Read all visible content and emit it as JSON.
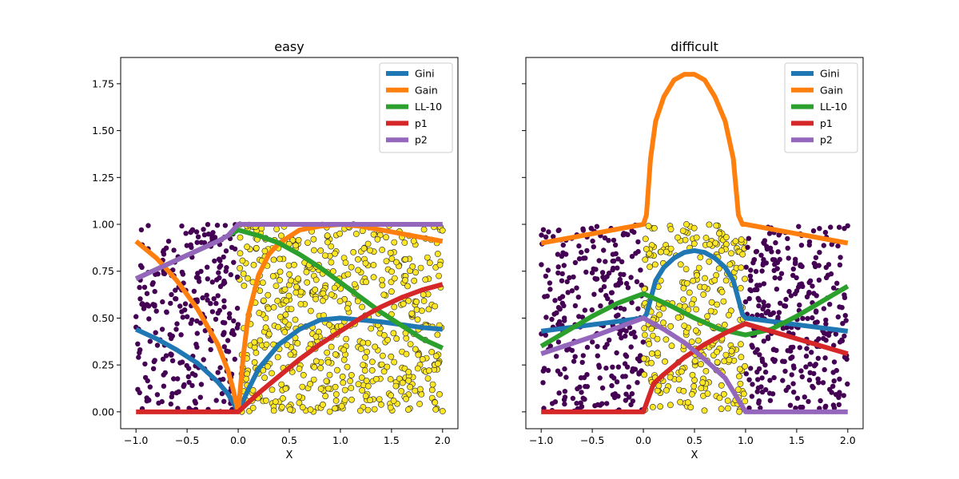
{
  "chart_data": [
    {
      "type": "line",
      "title": "easy",
      "xlabel": "X",
      "ylabel": "",
      "xlim": [
        -1.15,
        2.15
      ],
      "ylim": [
        -0.09,
        1.89
      ],
      "xticks": [
        -1.0,
        -0.5,
        0.0,
        0.5,
        1.0,
        1.5,
        2.0
      ],
      "yticks": [
        0.0,
        0.25,
        0.5,
        0.75,
        1.0,
        1.25,
        1.5,
        1.75
      ],
      "xtick_labels": [
        "−1.0",
        "−0.5",
        "0.0",
        "0.5",
        "1.0",
        "1.5",
        "2.0"
      ],
      "ytick_labels": [
        "0.00",
        "0.25",
        "0.50",
        "0.75",
        "1.00",
        "1.25",
        "1.50",
        "1.75"
      ],
      "legend_position": "top-right",
      "scatter": {
        "description": "class samples scattered over x in [-1, 2], y in [0, 1]",
        "classes": [
          {
            "name": "class 0",
            "color": "#440154",
            "region": "x < 0"
          },
          {
            "name": "class 1",
            "color": "#fde725",
            "region": "x >= 0"
          }
        ],
        "count": 900
      },
      "series": [
        {
          "name": "Gini",
          "color": "#1f77b4",
          "x": [
            -1,
            -0.8,
            -0.6,
            -0.4,
            -0.2,
            -0.1,
            -0.05,
            0,
            0.05,
            0.1,
            0.2,
            0.4,
            0.6,
            0.8,
            1.0,
            1.2,
            1.4,
            1.6,
            1.8,
            2.0
          ],
          "y": [
            0.44,
            0.39,
            0.33,
            0.26,
            0.16,
            0.095,
            0.05,
            0.0,
            0.06,
            0.12,
            0.23,
            0.36,
            0.44,
            0.49,
            0.5,
            0.49,
            0.48,
            0.465,
            0.45,
            0.44
          ]
        },
        {
          "name": "Gain",
          "color": "#ff7f0e",
          "x": [
            -1,
            -0.8,
            -0.6,
            -0.4,
            -0.2,
            -0.1,
            -0.05,
            0,
            0.05,
            0.1,
            0.2,
            0.3,
            0.4,
            0.6,
            0.8,
            1.0,
            1.2,
            1.4,
            1.6,
            1.8,
            2.0
          ],
          "y": [
            0.91,
            0.82,
            0.7,
            0.55,
            0.36,
            0.22,
            0.12,
            0.0,
            0.3,
            0.52,
            0.73,
            0.84,
            0.9,
            0.97,
            0.99,
            1.0,
            0.99,
            0.97,
            0.95,
            0.93,
            0.91
          ]
        },
        {
          "name": "LL-10",
          "color": "#2ca02c",
          "x": [
            -1,
            -0.8,
            -0.6,
            -0.4,
            -0.2,
            0,
            0.2,
            0.4,
            0.6,
            0.8,
            1.0,
            1.2,
            1.4,
            1.6,
            1.8,
            2.0
          ],
          "y": [
            0.71,
            0.76,
            0.81,
            0.86,
            0.91,
            0.97,
            0.94,
            0.9,
            0.84,
            0.77,
            0.69,
            0.61,
            0.53,
            0.46,
            0.39,
            0.34
          ]
        },
        {
          "name": "p1",
          "color": "#d62728",
          "x": [
            -1,
            -0.5,
            0,
            0.1,
            0.2,
            0.4,
            0.6,
            0.8,
            1.0,
            1.2,
            1.4,
            1.6,
            1.8,
            2.0
          ],
          "y": [
            0.0,
            0.0,
            0.0,
            0.05,
            0.1,
            0.19,
            0.28,
            0.36,
            0.43,
            0.5,
            0.56,
            0.61,
            0.65,
            0.68
          ]
        },
        {
          "name": "p2",
          "color": "#9467bd",
          "x": [
            -1,
            -0.8,
            -0.6,
            -0.4,
            -0.2,
            -0.1,
            0,
            0.5,
            1.0,
            1.5,
            2.0
          ],
          "y": [
            0.71,
            0.76,
            0.81,
            0.86,
            0.91,
            0.94,
            1.0,
            1.0,
            1.0,
            1.0,
            1.0
          ]
        }
      ]
    },
    {
      "type": "line",
      "title": "difficult",
      "xlabel": "X",
      "ylabel": "",
      "xlim": [
        -1.15,
        2.15
      ],
      "ylim": [
        -0.09,
        1.89
      ],
      "xticks": [
        -1.0,
        -0.5,
        0.0,
        0.5,
        1.0,
        1.5,
        2.0
      ],
      "yticks": [
        0.0,
        0.25,
        0.5,
        0.75,
        1.0,
        1.25,
        1.5,
        1.75
      ],
      "xtick_labels": [
        "−1.0",
        "−0.5",
        "0.0",
        "0.5",
        "1.0",
        "1.5",
        "2.0"
      ],
      "ytick_labels": [
        "0.00",
        "0.25",
        "0.50",
        "0.75",
        "1.00",
        "1.25",
        "1.50",
        "1.75"
      ],
      "legend_position": "top-right",
      "scatter": {
        "description": "class samples scattered over x in [-1, 2], y in [0, 1]",
        "classes": [
          {
            "name": "class 0",
            "color": "#440154",
            "region": "x < 0 or x > 1"
          },
          {
            "name": "class 1",
            "color": "#fde725",
            "region": "0 <= x <= 1"
          }
        ],
        "count": 900
      },
      "series": [
        {
          "name": "Gini",
          "color": "#1f77b4",
          "x": [
            -1,
            -0.5,
            0,
            0.03,
            0.07,
            0.12,
            0.2,
            0.3,
            0.4,
            0.5,
            0.6,
            0.7,
            0.8,
            0.88,
            0.93,
            0.97,
            1.0,
            1.5,
            2.0
          ],
          "y": [
            0.43,
            0.465,
            0.5,
            0.52,
            0.6,
            0.7,
            0.77,
            0.82,
            0.85,
            0.86,
            0.85,
            0.82,
            0.77,
            0.7,
            0.6,
            0.52,
            0.5,
            0.465,
            0.43
          ]
        },
        {
          "name": "Gain",
          "color": "#ff7f0e",
          "x": [
            -1,
            -0.5,
            0,
            0.03,
            0.07,
            0.12,
            0.2,
            0.3,
            0.4,
            0.5,
            0.6,
            0.7,
            0.8,
            0.88,
            0.93,
            0.97,
            1.0,
            1.5,
            2.0
          ],
          "y": [
            0.9,
            0.95,
            1.0,
            1.05,
            1.35,
            1.55,
            1.68,
            1.77,
            1.8,
            1.8,
            1.77,
            1.68,
            1.55,
            1.35,
            1.05,
            1.0,
            1.0,
            0.95,
            0.9
          ]
        },
        {
          "name": "LL-10",
          "color": "#2ca02c",
          "x": [
            -1,
            -0.75,
            -0.5,
            -0.25,
            0,
            0.25,
            0.5,
            0.75,
            1.0,
            1.25,
            1.5,
            1.75,
            2.0
          ],
          "y": [
            0.35,
            0.43,
            0.51,
            0.58,
            0.63,
            0.57,
            0.5,
            0.44,
            0.41,
            0.44,
            0.51,
            0.59,
            0.67
          ]
        },
        {
          "name": "p1",
          "color": "#d62728",
          "x": [
            -1,
            -0.5,
            0,
            0.1,
            0.2,
            0.4,
            0.6,
            0.8,
            1.0,
            1.25,
            1.5,
            1.75,
            2.0
          ],
          "y": [
            0.0,
            0.0,
            0.0,
            0.15,
            0.2,
            0.29,
            0.36,
            0.42,
            0.47,
            0.43,
            0.39,
            0.35,
            0.31
          ]
        },
        {
          "name": "p2",
          "color": "#9467bd",
          "x": [
            -1,
            -0.5,
            0,
            0.2,
            0.4,
            0.6,
            0.8,
            0.9,
            1.0,
            1.5,
            2.0
          ],
          "y": [
            0.31,
            0.4,
            0.5,
            0.44,
            0.37,
            0.28,
            0.18,
            0.09,
            0.0,
            0.0,
            0.0
          ]
        }
      ]
    }
  ]
}
